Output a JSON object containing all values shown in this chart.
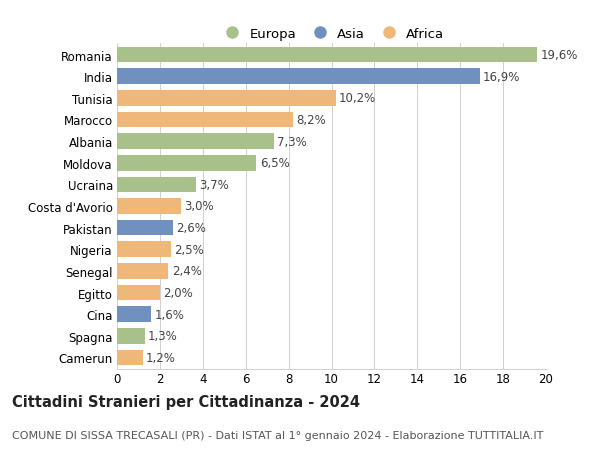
{
  "countries": [
    "Romania",
    "India",
    "Tunisia",
    "Marocco",
    "Albania",
    "Moldova",
    "Ucraina",
    "Costa d'Avorio",
    "Pakistan",
    "Nigeria",
    "Senegal",
    "Egitto",
    "Cina",
    "Spagna",
    "Camerun"
  ],
  "values": [
    19.6,
    16.9,
    10.2,
    8.2,
    7.3,
    6.5,
    3.7,
    3.0,
    2.6,
    2.5,
    2.4,
    2.0,
    1.6,
    1.3,
    1.2
  ],
  "labels": [
    "19,6%",
    "16,9%",
    "10,2%",
    "8,2%",
    "7,3%",
    "6,5%",
    "3,7%",
    "3,0%",
    "2,6%",
    "2,5%",
    "2,4%",
    "2,0%",
    "1,6%",
    "1,3%",
    "1,2%"
  ],
  "continents": [
    "Europa",
    "Asia",
    "Africa",
    "Africa",
    "Europa",
    "Europa",
    "Europa",
    "Africa",
    "Asia",
    "Africa",
    "Africa",
    "Africa",
    "Asia",
    "Europa",
    "Africa"
  ],
  "colors": {
    "Europa": "#a8c08a",
    "Asia": "#7090c0",
    "Africa": "#f0b878"
  },
  "title": "Cittadini Stranieri per Cittadinanza - 2024",
  "subtitle": "COMUNE DI SISSA TRECASALI (PR) - Dati ISTAT al 1° gennaio 2024 - Elaborazione TUTTITALIA.IT",
  "xlim": [
    0,
    20
  ],
  "xticks": [
    0,
    2,
    4,
    6,
    8,
    10,
    12,
    14,
    16,
    18,
    20
  ],
  "background_color": "#ffffff",
  "grid_color": "#d0d0d0",
  "bar_height": 0.72,
  "label_fontsize": 8.5,
  "ytick_fontsize": 8.5,
  "xtick_fontsize": 8.5,
  "title_fontsize": 10.5,
  "subtitle_fontsize": 8.0,
  "legend_fontsize": 9.5,
  "legend_marker_size": 10
}
